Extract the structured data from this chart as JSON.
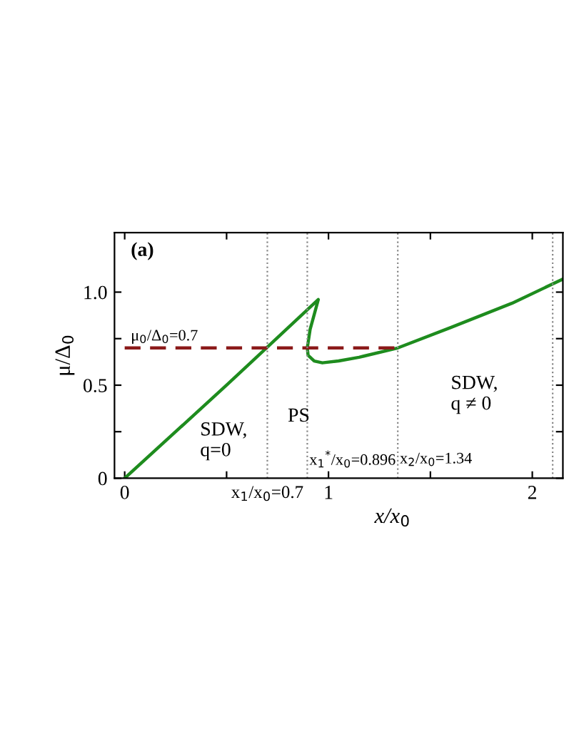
{
  "chart_data": {
    "type": "line",
    "xlabel": "x/x$_{0}$",
    "ylabel": "μ/Δ$_{0}$",
    "xlim": [
      -0.05,
      2.15
    ],
    "ylim": [
      0,
      1.32
    ],
    "xticks": [
      0,
      {
        "value": 0.5,
        "label": null
      },
      1,
      {
        "value": 1.5,
        "label": null
      },
      2
    ],
    "yticks": [
      0,
      {
        "value": 0.25,
        "label": null
      },
      0.5,
      {
        "value": 0.75,
        "label": null
      },
      {
        "value": 1.0,
        "label": "1.0"
      }
    ],
    "grid": false,
    "legend": false,
    "series": [
      {
        "color": "#1e8c1e",
        "line_style": "solid",
        "x": [
          0,
          0.5,
          0.95,
          0.93,
          0.91,
          0.896,
          0.9,
          0.93,
          0.97,
          1.05,
          1.15,
          1.34,
          1.6,
          1.9,
          2.15
        ],
        "values": [
          0,
          0.5,
          0.96,
          0.88,
          0.8,
          0.7,
          0.66,
          0.63,
          0.62,
          0.63,
          0.65,
          0.7,
          0.81,
          0.94,
          1.07
        ]
      },
      {
        "color": "#8b1a1a",
        "line_style": "dashed",
        "x": [
          0,
          1.34
        ],
        "values": [
          0.7,
          0.7
        ]
      }
    ],
    "ref_lines": [
      {
        "axis": "x",
        "value": 0.7,
        "label": "x$_{1}$/x$_{0}$=0.7",
        "line_style": "dotted",
        "color": "#888888"
      },
      {
        "axis": "x",
        "value": 0.896,
        "label": "x$_{1}$$^{*}$/x$_{0}$=0.896",
        "line_style": "dotted",
        "color": "#888888"
      },
      {
        "axis": "x",
        "value": 1.34,
        "label": "x$_{2}$/x$_{0}$=1.34",
        "line_style": "dotted",
        "color": "#888888"
      },
      {
        "axis": "x",
        "value": 2.1,
        "line_style": "dotted",
        "color": "#888888"
      }
    ],
    "annotations": [
      "(a)",
      "μ$_{0}$/Δ$_{0}$=0.7",
      "SDW,\nq=0",
      "PS",
      "SDW,\nq ≠ 0"
    ]
  }
}
